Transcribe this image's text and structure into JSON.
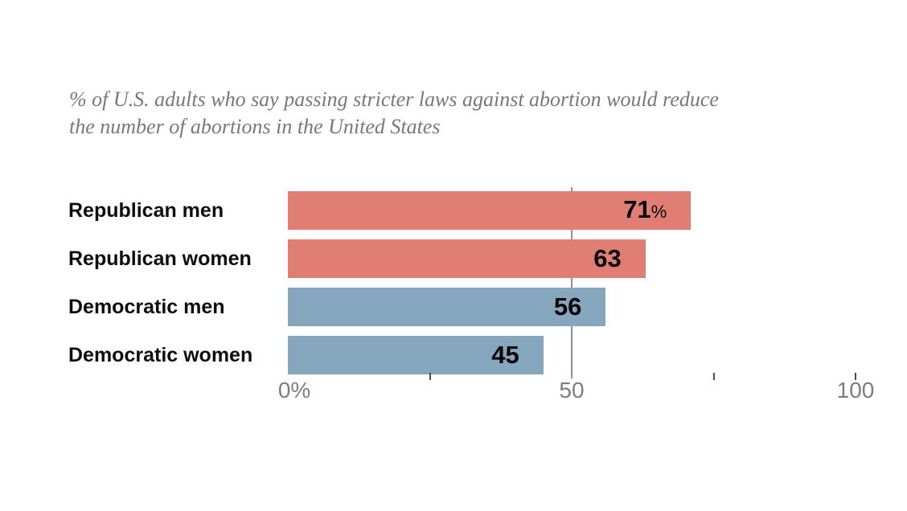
{
  "subtitle": {
    "lines": [
      "% of U.S. adults who say passing stricter laws against abortion would reduce",
      "the number of abortions in the United States"
    ]
  },
  "chart_data": {
    "type": "bar",
    "orientation": "horizontal",
    "title": "% of U.S. adults who say passing stricter laws against abortion would reduce the number of abortions in the United States",
    "categories": [
      "Republican men",
      "Republican women",
      "Democratic men",
      "Democratic women"
    ],
    "values": [
      71,
      63,
      56,
      45
    ],
    "value_labels": [
      "71%",
      "63",
      "56",
      "45"
    ],
    "bar_colors": [
      "#e17e73",
      "#e17e73",
      "#85a6bc",
      "#85a6bc"
    ],
    "xlim": [
      0,
      100
    ],
    "x_ticks": [
      25,
      75,
      100
    ],
    "gridlines": [
      50
    ],
    "x_axis_labels": [
      {
        "value": 0,
        "label": "0%"
      },
      {
        "value": 50,
        "label": "50"
      },
      {
        "value": 100,
        "label": "100"
      }
    ],
    "legend": "none",
    "colors": {
      "republican": "#e17e73",
      "democratic": "#85a6bc",
      "axis_text": "#7b7d80",
      "subtitle_text": "#77787b",
      "gridline": "#8f9093",
      "value_text": "#050505",
      "category_text": "#0e0e0e",
      "background": "#ffffff"
    }
  }
}
